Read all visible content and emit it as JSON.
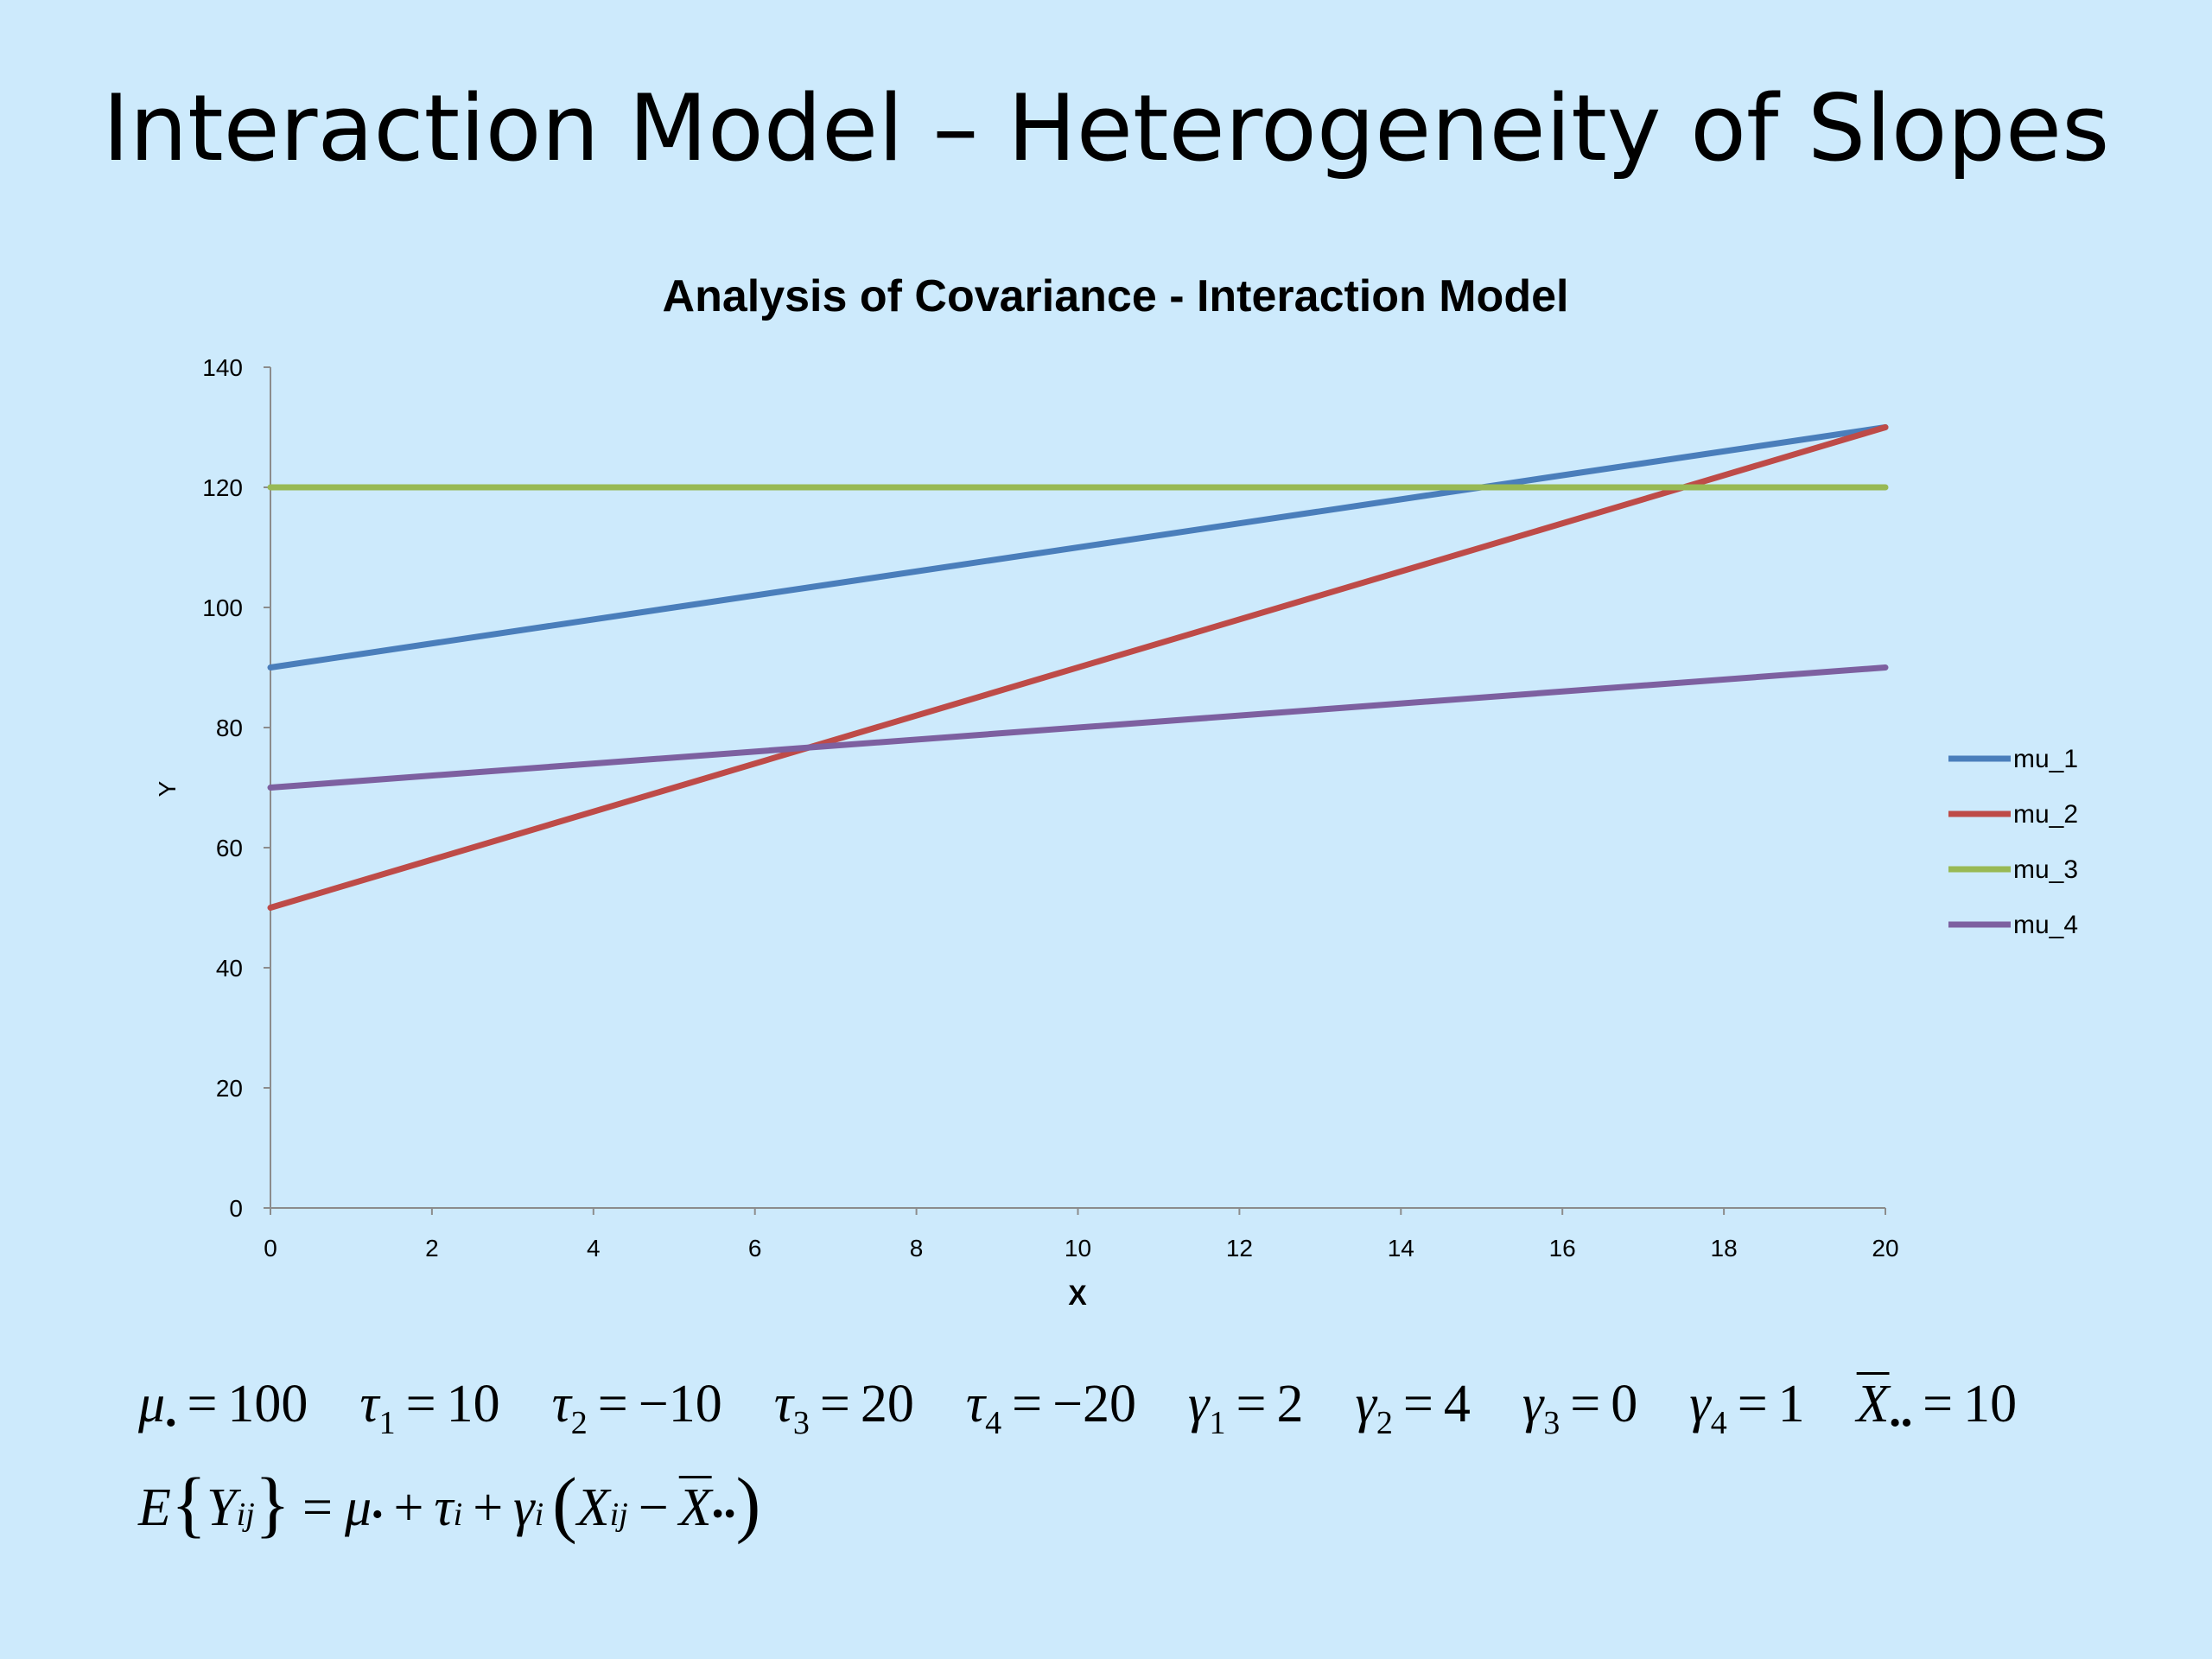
{
  "slide": {
    "title": "Interaction Model – Heterogeneity of Slopes"
  },
  "chart_data": {
    "type": "line",
    "title": "Analysis of Covariance - Interaction Model",
    "xlabel": "X",
    "ylabel": "Y",
    "xlim": [
      0,
      20
    ],
    "ylim": [
      0,
      140
    ],
    "x_ticks": [
      0,
      2,
      4,
      6,
      8,
      10,
      12,
      14,
      16,
      18,
      20
    ],
    "y_ticks": [
      0,
      20,
      40,
      60,
      80,
      100,
      120,
      140
    ],
    "grid": false,
    "legend_position": "right",
    "series": [
      {
        "name": "mu_1",
        "color": "#4a7ebb",
        "x": [
          0,
          20
        ],
        "y": [
          90,
          130
        ]
      },
      {
        "name": "mu_2",
        "color": "#be4b48",
        "x": [
          0,
          20
        ],
        "y": [
          50,
          130
        ]
      },
      {
        "name": "mu_3",
        "color": "#98b954",
        "x": [
          0,
          20
        ],
        "y": [
          120,
          120
        ]
      },
      {
        "name": "mu_4",
        "color": "#7d60a0",
        "x": [
          0,
          20
        ],
        "y": [
          70,
          90
        ]
      }
    ]
  },
  "equations": {
    "params": [
      {
        "symbol": "μ",
        "sub": "•",
        "value": "100"
      },
      {
        "symbol": "τ",
        "sub": "1",
        "value": "10"
      },
      {
        "symbol": "τ",
        "sub": "2",
        "value": "−10"
      },
      {
        "symbol": "τ",
        "sub": "3",
        "value": "20"
      },
      {
        "symbol": "τ",
        "sub": "4",
        "value": "−20"
      },
      {
        "symbol": "γ",
        "sub": "1",
        "value": "2"
      },
      {
        "symbol": "γ",
        "sub": "2",
        "value": "4"
      },
      {
        "symbol": "γ",
        "sub": "3",
        "value": "0"
      },
      {
        "symbol": "γ",
        "sub": "4",
        "value": "1"
      },
      {
        "symbol": "X",
        "sub": "••",
        "value": "10"
      }
    ],
    "model": {
      "lhs_fn": "E",
      "lhs_var": "Y",
      "lhs_sub": "ij",
      "mu": "μ",
      "mu_sub": "•",
      "tau": "τ",
      "tau_sub": "i",
      "gamma": "γ",
      "gamma_sub": "i",
      "x": "X",
      "x_sub": "ij",
      "xbar": "X",
      "xbar_sub": "••"
    }
  }
}
